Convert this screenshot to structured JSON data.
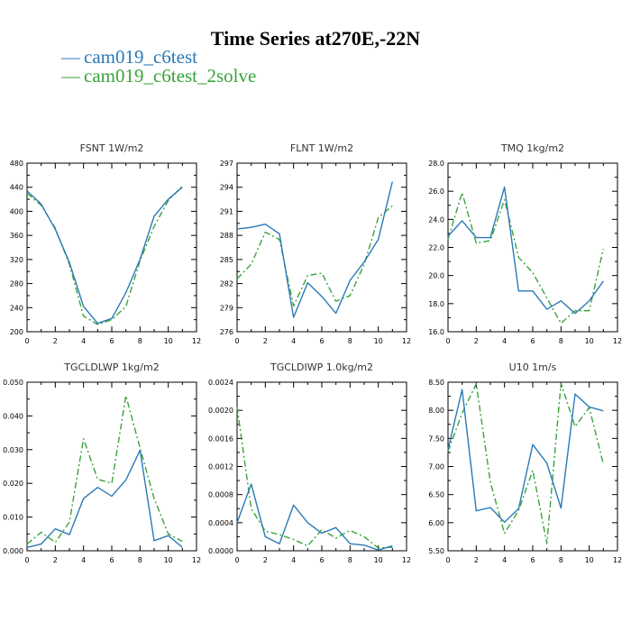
{
  "title": "Time Series at270E,-22N",
  "legend": [
    {
      "dash": "—",
      "label": "cam019_c6test",
      "color": "#2a7ab8"
    },
    {
      "dash": "—",
      "label": "cam019_c6test_2solve",
      "color": "#3aa33a"
    }
  ],
  "chart_data": [
    {
      "type": "line",
      "title": "FSNT   1W/m2",
      "x": [
        0,
        1,
        2,
        3,
        4,
        5,
        6,
        7,
        8,
        9,
        10,
        11
      ],
      "xlim": [
        0,
        12
      ],
      "xticks": [
        0,
        2,
        4,
        6,
        8,
        10,
        12
      ],
      "xticklabels": [
        "0",
        "2",
        "4",
        "6",
        "8",
        "10",
        "12"
      ],
      "ylim": [
        200,
        480
      ],
      "yticks": [
        200,
        240,
        280,
        320,
        360,
        400,
        440,
        480
      ],
      "yticklabels": [
        "200",
        "240",
        "280",
        "320",
        "360",
        "400",
        "440",
        "480"
      ],
      "series": [
        {
          "name": "cam019_c6test",
          "color": "#2a7ab8",
          "dash": "",
          "values": [
            434,
            412,
            370,
            315,
            242,
            214,
            222,
            265,
            320,
            392,
            420,
            440
          ]
        },
        {
          "name": "cam019_c6test_2solve",
          "color": "#3aa33a",
          "dash": "7,3,2,3",
          "values": [
            430,
            410,
            372,
            312,
            226,
            212,
            220,
            242,
            318,
            375,
            418,
            442
          ]
        }
      ]
    },
    {
      "type": "line",
      "title": "FLNT   1W/m2",
      "x": [
        0,
        1,
        2,
        3,
        4,
        5,
        6,
        7,
        8,
        9,
        10,
        11
      ],
      "xlim": [
        0,
        12
      ],
      "xticks": [
        0,
        2,
        4,
        6,
        8,
        10,
        12
      ],
      "xticklabels": [
        "0",
        "2",
        "4",
        "6",
        "8",
        "10",
        "12"
      ],
      "ylim": [
        276,
        297
      ],
      "yticks": [
        276,
        279,
        282,
        285,
        288,
        291,
        294,
        297
      ],
      "yticklabels": [
        "276",
        "279",
        "282",
        "285",
        "288",
        "291",
        "294",
        "297"
      ],
      "series": [
        {
          "name": "cam019_c6test",
          "color": "#2a7ab8",
          "dash": "",
          "values": [
            288.8,
            289.0,
            289.4,
            288.2,
            277.8,
            282.1,
            280.4,
            278.3,
            282.4,
            284.7,
            287.5,
            294.7
          ]
        },
        {
          "name": "cam019_c6test_2solve",
          "color": "#3aa33a",
          "dash": "7,3,2,3",
          "values": [
            282.6,
            284.4,
            288.4,
            287.5,
            279.2,
            283.0,
            283.3,
            279.8,
            280.5,
            284.4,
            290.2,
            291.7
          ]
        }
      ]
    },
    {
      "type": "line",
      "title": "TMQ   1kg/m2",
      "x": [
        0,
        1,
        2,
        3,
        4,
        5,
        6,
        7,
        8,
        9,
        10,
        11
      ],
      "xlim": [
        0,
        12
      ],
      "xticks": [
        0,
        2,
        4,
        6,
        8,
        10,
        12
      ],
      "xticklabels": [
        "0",
        "2",
        "4",
        "6",
        "8",
        "10",
        "12"
      ],
      "ylim": [
        16,
        28
      ],
      "yticks": [
        16,
        18,
        20,
        22,
        24,
        26,
        28
      ],
      "yticklabels": [
        "16.0",
        "18.0",
        "20.0",
        "22.0",
        "24.0",
        "26.0",
        "28.0"
      ],
      "series": [
        {
          "name": "cam019_c6test",
          "color": "#2a7ab8",
          "dash": "",
          "values": [
            22.8,
            23.9,
            22.7,
            22.7,
            26.3,
            18.9,
            18.9,
            17.6,
            18.2,
            17.3,
            18.2,
            19.6
          ]
        },
        {
          "name": "cam019_c6test_2solve",
          "color": "#3aa33a",
          "dash": "7,3,2,3",
          "values": [
            22.6,
            25.9,
            22.3,
            22.5,
            25.4,
            21.3,
            20.2,
            18.4,
            16.6,
            17.5,
            17.5,
            21.9
          ]
        }
      ]
    },
    {
      "type": "line",
      "title": "TGCLDLWP   1kg/m2",
      "x": [
        0,
        1,
        2,
        3,
        4,
        5,
        6,
        7,
        8,
        9,
        10,
        11
      ],
      "xlim": [
        0,
        12
      ],
      "xticks": [
        0,
        2,
        4,
        6,
        8,
        10,
        12
      ],
      "xticklabels": [
        "0",
        "2",
        "4",
        "6",
        "8",
        "10",
        "12"
      ],
      "ylim": [
        0,
        0.05
      ],
      "yticks": [
        0,
        0.01,
        0.02,
        0.03,
        0.04,
        0.05
      ],
      "yticklabels": [
        "0.000",
        "0.010",
        "0.020",
        "0.030",
        "0.040",
        "0.050"
      ],
      "series": [
        {
          "name": "cam019_c6test",
          "color": "#2a7ab8",
          "dash": "",
          "values": [
            0.001,
            0.002,
            0.0065,
            0.0048,
            0.0155,
            0.0188,
            0.0162,
            0.021,
            0.0298,
            0.003,
            0.0045,
            0.001
          ]
        },
        {
          "name": "cam019_c6test_2solve",
          "color": "#3aa33a",
          "dash": "7,3,2,3",
          "values": [
            0.002,
            0.0055,
            0.0025,
            0.0085,
            0.0332,
            0.0212,
            0.02,
            0.046,
            0.0305,
            0.0155,
            0.005,
            0.0028
          ]
        }
      ]
    },
    {
      "type": "line",
      "title": "TGCLDIWP   1.0kg/m2",
      "x": [
        0,
        1,
        2,
        3,
        4,
        5,
        6,
        7,
        8,
        9,
        10,
        11
      ],
      "xlim": [
        0,
        12
      ],
      "xticks": [
        0,
        2,
        4,
        6,
        8,
        10,
        12
      ],
      "xticklabels": [
        "0",
        "2",
        "4",
        "6",
        "8",
        "10",
        "12"
      ],
      "ylim": [
        0,
        0.0024
      ],
      "yticks": [
        0,
        0.0004,
        0.0008,
        0.0012,
        0.0016,
        0.002,
        0.0024
      ],
      "yticklabels": [
        "0.0000",
        "0.0004",
        "0.0008",
        "0.0012",
        "0.0016",
        "0.0020",
        "0.0024"
      ],
      "series": [
        {
          "name": "cam019_c6test",
          "color": "#2a7ab8",
          "dash": "",
          "values": [
            0.0004,
            0.00095,
            0.0002,
            0.0001,
            0.00065,
            0.0004,
            0.00025,
            0.00033,
            0.0001,
            8e-05,
            1e-05,
            7e-05
          ]
        },
        {
          "name": "cam019_c6test_2solve",
          "color": "#3aa33a",
          "dash": "7,3,2,3",
          "values": [
            0.00205,
            0.0006,
            0.00028,
            0.00023,
            0.00016,
            7e-05,
            0.0003,
            0.00018,
            0.00029,
            0.0002,
            4e-05,
            5e-05
          ]
        }
      ]
    },
    {
      "type": "line",
      "title": "U10   1m/s",
      "x": [
        0,
        1,
        2,
        3,
        4,
        5,
        6,
        7,
        8,
        9,
        10,
        11
      ],
      "xlim": [
        0,
        12
      ],
      "xticks": [
        0,
        2,
        4,
        6,
        8,
        10,
        12
      ],
      "xticklabels": [
        "0",
        "2",
        "4",
        "6",
        "8",
        "10",
        "12"
      ],
      "ylim": [
        5.5,
        8.5
      ],
      "yticks": [
        5.5,
        6.0,
        6.5,
        7.0,
        7.5,
        8.0,
        8.5
      ],
      "yticklabels": [
        "5.50",
        "6.00",
        "6.50",
        "7.00",
        "7.50",
        "8.00",
        "8.50"
      ],
      "series": [
        {
          "name": "cam019_c6test",
          "color": "#2a7ab8",
          "dash": "",
          "values": [
            7.3,
            8.37,
            6.21,
            6.27,
            6.01,
            6.25,
            7.39,
            7.06,
            6.26,
            8.29,
            8.06,
            7.99
          ]
        },
        {
          "name": "cam019_c6test_2solve",
          "color": "#3aa33a",
          "dash": "7,3,2,3",
          "values": [
            7.27,
            7.95,
            8.47,
            6.72,
            5.81,
            6.22,
            6.93,
            5.63,
            8.48,
            7.71,
            8.05,
            7.04
          ]
        }
      ]
    }
  ]
}
